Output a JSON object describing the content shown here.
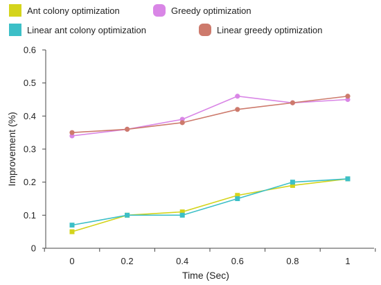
{
  "chart_data": {
    "type": "line",
    "title": "",
    "xlabel": "Time (Sec)",
    "ylabel": "Improvement (%)",
    "x": [
      0,
      0.2,
      0.4,
      0.6,
      0.8,
      1
    ],
    "x_tick_labels": [
      "0",
      "0.2",
      "0.4",
      "0.6",
      "0.8",
      "1"
    ],
    "ylim": [
      0,
      0.6
    ],
    "y_ticks": [
      0,
      0.1,
      0.2,
      0.3,
      0.4,
      0.5,
      0.6
    ],
    "y_tick_labels": [
      "0",
      "0.1",
      "0.2",
      "0.3",
      "0.4",
      "0.5",
      "0.6"
    ],
    "grid": false,
    "legend_position": "top",
    "series": [
      {
        "name": "Ant colony optimization",
        "marker": "square",
        "color": "#d4d41c",
        "values": [
          0.05,
          0.1,
          0.11,
          0.16,
          0.19,
          0.21
        ]
      },
      {
        "name": "Greedy optimization",
        "marker": "circle",
        "color": "#d986e6",
        "values": [
          0.34,
          0.36,
          0.39,
          0.46,
          0.44,
          0.45
        ]
      },
      {
        "name": "Linear ant colony optimization",
        "marker": "square",
        "color": "#3cbfc7",
        "values": [
          0.07,
          0.1,
          0.1,
          0.15,
          0.2,
          0.21
        ]
      },
      {
        "name": "Linear greedy optimization",
        "marker": "circle",
        "color": "#cd7a6c",
        "values": [
          0.35,
          0.36,
          0.38,
          0.42,
          0.44,
          0.46
        ]
      }
    ]
  }
}
